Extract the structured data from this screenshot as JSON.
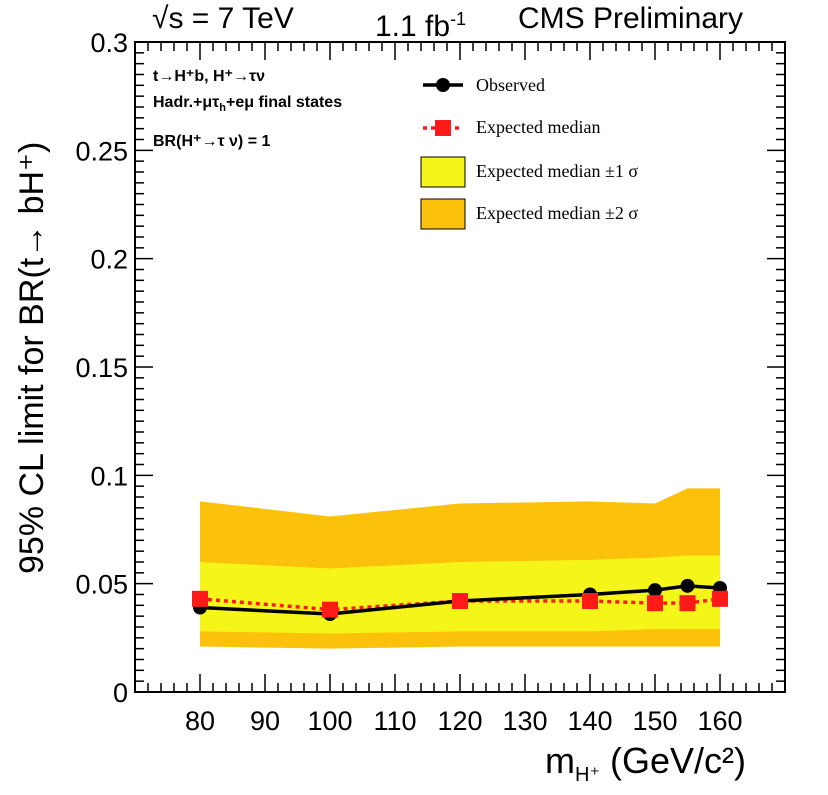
{
  "header": {
    "energy": "√s = 7 TeV",
    "lumi_value": "1.1 fb",
    "lumi_exp": "-1",
    "experiment": "CMS Preliminary"
  },
  "annotations": {
    "line1": "t→H⁺b, H⁺→τν",
    "line2": "Hadr.+μτ",
    "line2_sub": "h",
    "line2_rest": "+eμ final states",
    "line3": "BR(H⁺→τ ν) = 1"
  },
  "chart_data": {
    "type": "line",
    "xlabel": "m",
    "xlabel_sub": "H⁺",
    "xlabel_units": "(GeV/c²)",
    "ylabel": "95% CL limit for BR(t→ bH⁺)",
    "xlim": [
      70,
      170
    ],
    "ylim": [
      0,
      0.3
    ],
    "x_ticks": [
      80,
      90,
      100,
      110,
      120,
      130,
      140,
      150,
      160
    ],
    "y_ticks": [
      0,
      0.05,
      0.1,
      0.15,
      0.2,
      0.25,
      0.3
    ],
    "y_tick_labels": [
      "0",
      "0.05",
      "0.1",
      "0.15",
      "0.2",
      "0.25",
      "0.3"
    ],
    "x": [
      80,
      100,
      120,
      140,
      150,
      155,
      160
    ],
    "series": [
      {
        "name": "Observed",
        "values": [
          0.039,
          0.036,
          0.042,
          0.045,
          0.047,
          0.049,
          0.048
        ]
      },
      {
        "name": "Expected median",
        "values": [
          0.043,
          0.038,
          0.042,
          0.042,
          0.041,
          0.041,
          0.043
        ]
      }
    ],
    "bands": [
      {
        "name": "Expected median ±2 σ",
        "lower": [
          0.021,
          0.02,
          0.021,
          0.021,
          0.021,
          0.021,
          0.021
        ],
        "upper": [
          0.088,
          0.081,
          0.087,
          0.088,
          0.087,
          0.094,
          0.094
        ]
      },
      {
        "name": "Expected median ±1 σ",
        "lower": [
          0.028,
          0.027,
          0.028,
          0.028,
          0.029,
          0.029,
          0.029
        ],
        "upper": [
          0.06,
          0.057,
          0.06,
          0.061,
          0.062,
          0.063,
          0.063
        ]
      }
    ],
    "legend_placement": "top-right",
    "grid": false,
    "colors": {
      "observed": "#000000",
      "expected": "#ff1a1a",
      "band1": "#f5f51a",
      "band2": "#fcc10a"
    }
  }
}
